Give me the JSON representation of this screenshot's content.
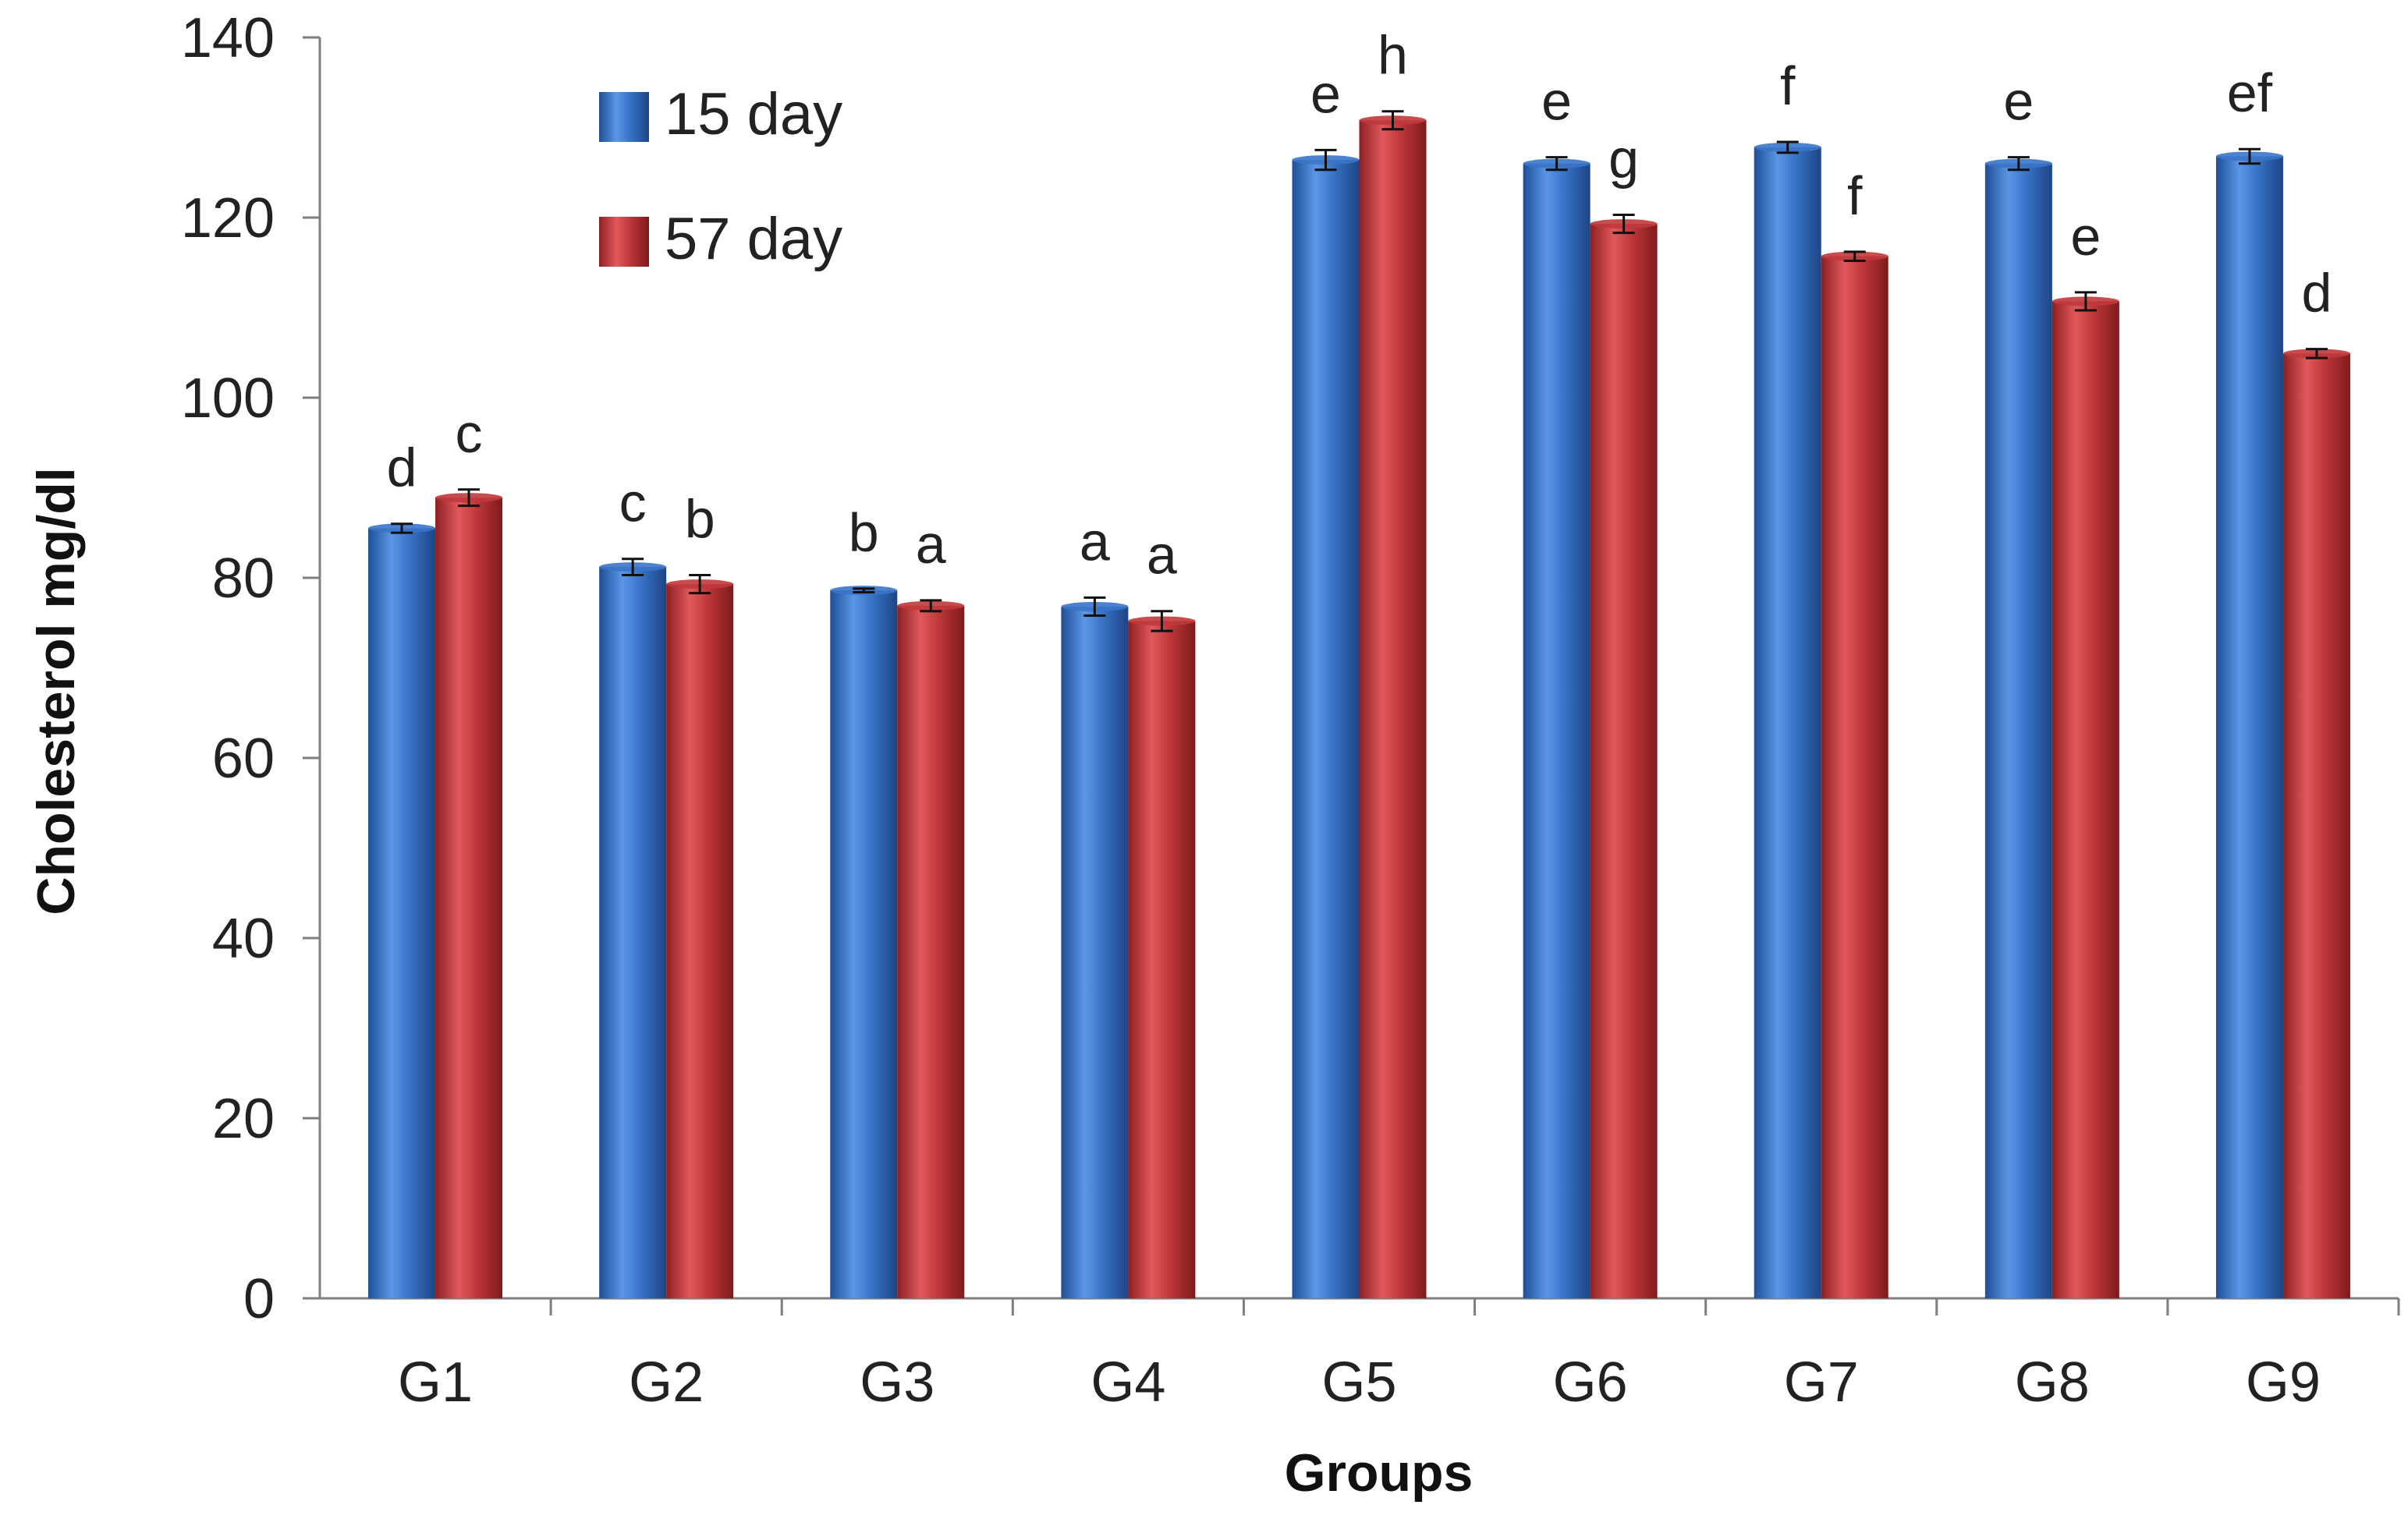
{
  "chart_data": {
    "type": "bar",
    "title": "",
    "xlabel": "Groups",
    "ylabel": "Cholesterol  mg/dl",
    "ylim": [
      0,
      140
    ],
    "yticks": [
      0,
      20,
      40,
      60,
      80,
      100,
      120,
      140
    ],
    "grid": false,
    "legend_position": "top-left",
    "categories": [
      "G1",
      "G2",
      "G3",
      "G4",
      "G5",
      "G6",
      "G7",
      "G8",
      "G9"
    ],
    "series": [
      {
        "name": "15 day",
        "color": "#3a74c9",
        "values": [
          85.5,
          81.2,
          78.6,
          76.8,
          126.4,
          126.0,
          127.8,
          126.0,
          126.8
        ],
        "errors": [
          0.5,
          0.9,
          0.2,
          1.0,
          1.1,
          0.7,
          0.6,
          0.7,
          0.8
        ],
        "labels": [
          "d",
          "c",
          "b",
          "a",
          "e",
          "e",
          "f",
          "e",
          "ef"
        ]
      },
      {
        "name": "57 day",
        "color": "#c0393b",
        "values": [
          88.9,
          79.3,
          76.9,
          75.2,
          130.8,
          119.3,
          115.7,
          110.7,
          104.9
        ],
        "errors": [
          0.9,
          1.0,
          0.6,
          1.1,
          1.0,
          1.0,
          0.5,
          1.0,
          0.5
        ],
        "labels": [
          "c",
          "b",
          "a",
          "a",
          "h",
          "g",
          "f",
          "e",
          "d"
        ]
      }
    ]
  }
}
